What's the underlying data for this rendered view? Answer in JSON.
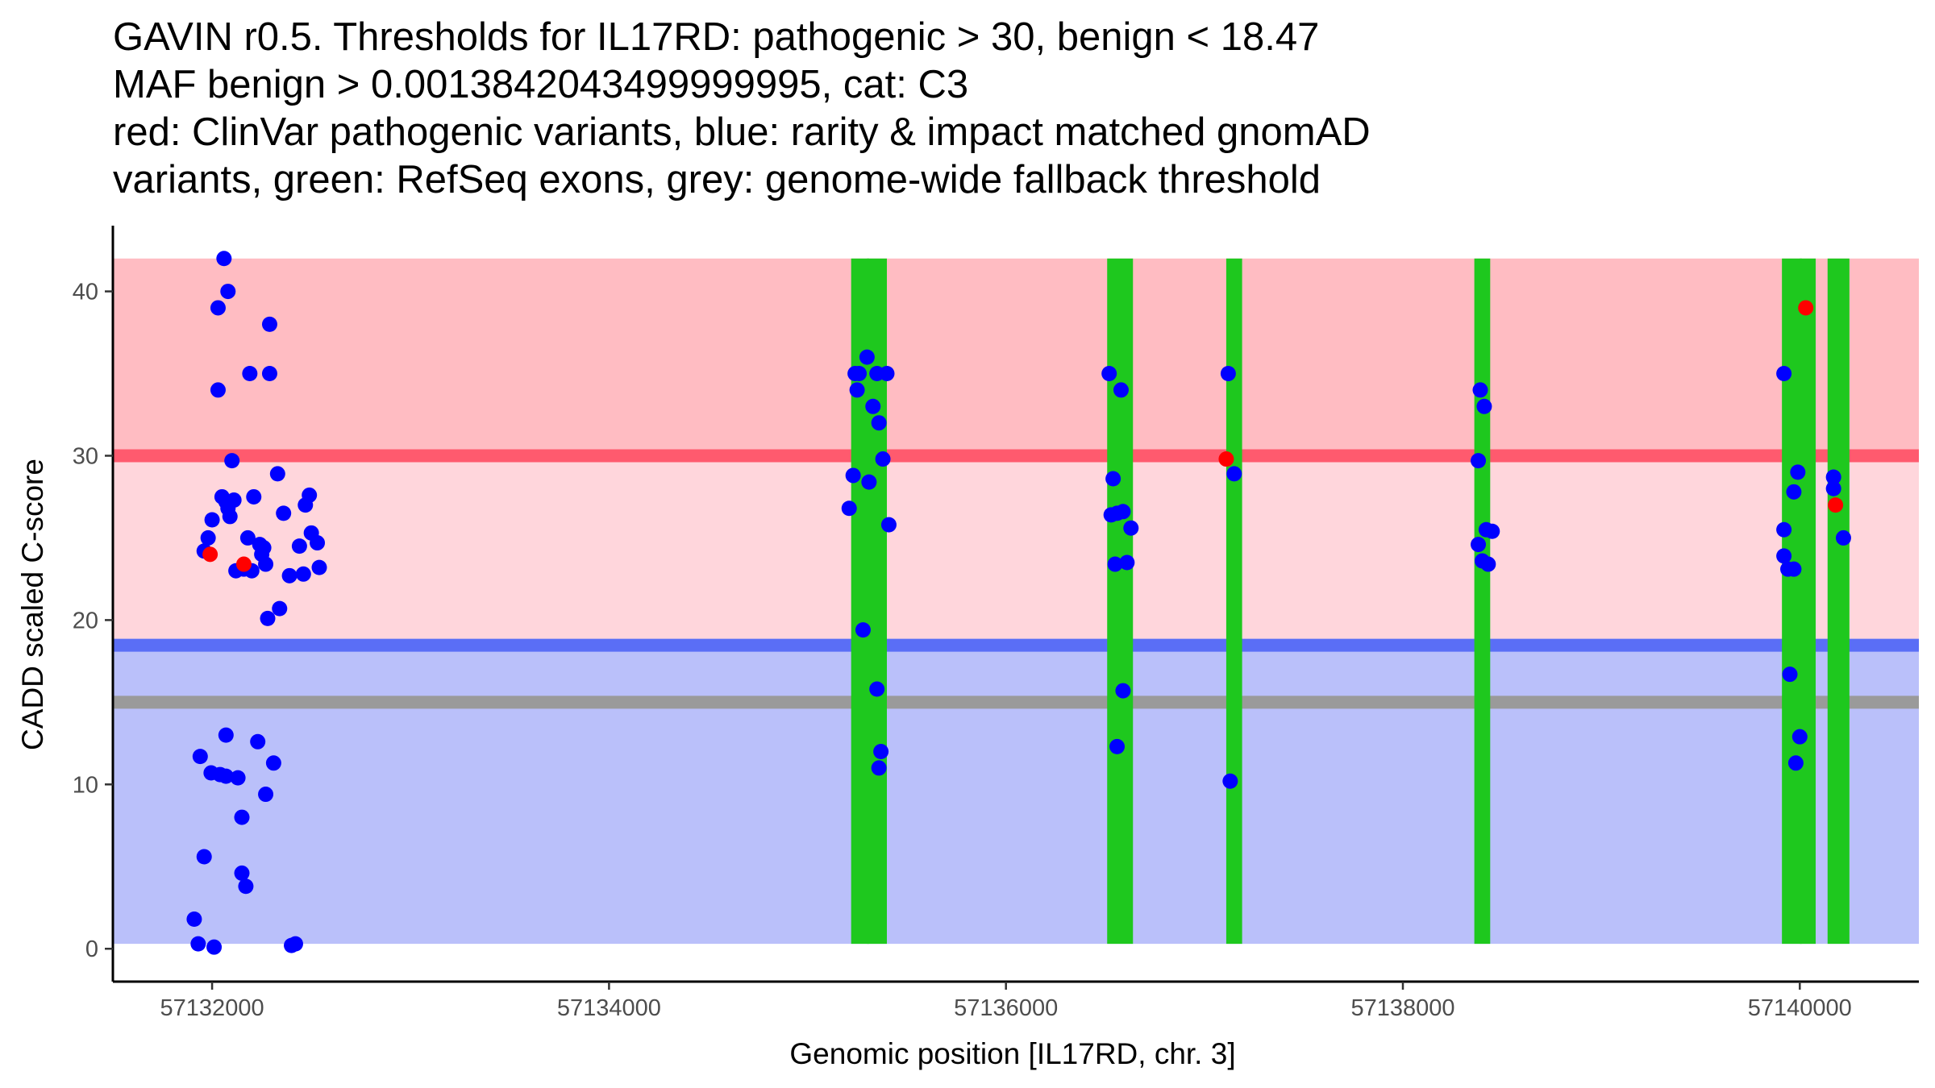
{
  "chart_data": {
    "type": "scatter",
    "title_lines": [
      "GAVIN r0.5. Thresholds for IL17RD: pathogenic > 30, benign < 18.47",
      "MAF benign > 0.0013842043499999995, cat: C3",
      "red: ClinVar pathogenic variants, blue: rarity & impact matched gnomAD",
      "variants, green: RefSeq exons, grey: genome-wide fallback threshold"
    ],
    "xlabel": "Genomic position [IL17RD, chr. 3]",
    "ylabel": "CADD scaled C-score",
    "xlim": [
      57131500,
      57140600
    ],
    "ylim": [
      -2,
      44
    ],
    "x_ticks": [
      {
        "value": 57132000,
        "label": "57132000"
      },
      {
        "value": 57134000,
        "label": "57134000"
      },
      {
        "value": 57136000,
        "label": "57136000"
      },
      {
        "value": 57138000,
        "label": "57138000"
      },
      {
        "value": 57140000,
        "label": "57140000"
      }
    ],
    "y_ticks": [
      {
        "value": 0,
        "label": "0"
      },
      {
        "value": 10,
        "label": "10"
      },
      {
        "value": 20,
        "label": "20"
      },
      {
        "value": 30,
        "label": "30"
      },
      {
        "value": 40,
        "label": "40"
      }
    ],
    "colors": {
      "pathogenic_region": "#ffbcc2",
      "vus_region": "#ffd6dc",
      "benign_region": "#bac0fa",
      "pathogenic_line": "#ff5a6e",
      "benign_line": "#5a6ef6",
      "fallback_line": "#9a9a9a",
      "exon": "#1ec81e",
      "pathogenic_point": "#ff0000",
      "benign_point": "#0000ff"
    },
    "regions": [
      {
        "name": "pathogenic",
        "ymin": 30,
        "ymax": 42
      },
      {
        "name": "vus",
        "ymin": 18.47,
        "ymax": 30
      },
      {
        "name": "benign",
        "ymin": 0.3,
        "ymax": 18.47
      }
    ],
    "thresholds": {
      "pathogenic": 30,
      "benign": 18.47,
      "fallback": 15
    },
    "exons": [
      {
        "start": 57135220,
        "end": 57135310
      },
      {
        "start": 57135300,
        "end": 57135400
      },
      {
        "start": 57136510,
        "end": 57136640
      },
      {
        "start": 57137110,
        "end": 57137190
      },
      {
        "start": 57138360,
        "end": 57138440
      },
      {
        "start": 57139910,
        "end": 57140010
      },
      {
        "start": 57140000,
        "end": 57140080
      },
      {
        "start": 57140140,
        "end": 57140250
      }
    ],
    "series": [
      {
        "name": "ClinVar pathogenic variants",
        "color": "#ff0000",
        "points": [
          [
            57131990,
            24.0
          ],
          [
            57132160,
            23.4
          ],
          [
            57137110,
            29.8
          ],
          [
            57140030,
            39.0
          ],
          [
            57140180,
            27.0
          ]
        ]
      },
      {
        "name": "rarity & impact matched gnomAD variants",
        "color": "#0000ff",
        "points": [
          [
            57131930,
            0.3
          ],
          [
            57131910,
            1.8
          ],
          [
            57131960,
            5.6
          ],
          [
            57131940,
            11.7
          ],
          [
            57132010,
            0.1
          ],
          [
            57131995,
            10.7
          ],
          [
            57132040,
            10.6
          ],
          [
            57132070,
            13.0
          ],
          [
            57132070,
            10.5
          ],
          [
            57132130,
            10.4
          ],
          [
            57132150,
            8.0
          ],
          [
            57132150,
            4.6
          ],
          [
            57132170,
            3.8
          ],
          [
            57132230,
            12.6
          ],
          [
            57132270,
            9.4
          ],
          [
            57132310,
            11.3
          ],
          [
            57132400,
            0.2
          ],
          [
            57132420,
            0.3
          ],
          [
            57132280,
            20.1
          ],
          [
            57132340,
            20.7
          ],
          [
            57131960,
            24.2
          ],
          [
            57131980,
            25.0
          ],
          [
            57132000,
            26.1
          ],
          [
            57132030,
            39.0
          ],
          [
            57132030,
            34.0
          ],
          [
            57132060,
            42.0
          ],
          [
            57132080,
            40.0
          ],
          [
            57132050,
            27.5
          ],
          [
            57132080,
            26.8
          ],
          [
            57132090,
            26.3
          ],
          [
            57132070,
            27.2
          ],
          [
            57132110,
            27.3
          ],
          [
            57132100,
            29.7
          ],
          [
            57132120,
            23.0
          ],
          [
            57132160,
            23.1
          ],
          [
            57132180,
            25.0
          ],
          [
            57132200,
            23.0
          ],
          [
            57132190,
            35.0
          ],
          [
            57132210,
            27.5
          ],
          [
            57132240,
            24.6
          ],
          [
            57132250,
            24.0
          ],
          [
            57132260,
            24.4
          ],
          [
            57132270,
            23.4
          ],
          [
            57132290,
            38.0
          ],
          [
            57132290,
            35.0
          ],
          [
            57132330,
            28.9
          ],
          [
            57132360,
            26.5
          ],
          [
            57132390,
            22.7
          ],
          [
            57132440,
            24.5
          ],
          [
            57132460,
            22.8
          ],
          [
            57132470,
            27.0
          ],
          [
            57132490,
            27.6
          ],
          [
            57132500,
            25.3
          ],
          [
            57132530,
            24.7
          ],
          [
            57132540,
            23.2
          ],
          [
            57135210,
            26.8
          ],
          [
            57135230,
            28.8
          ],
          [
            57135240,
            35.0
          ],
          [
            57135250,
            34.0
          ],
          [
            57135260,
            35.0
          ],
          [
            57135280,
            19.4
          ],
          [
            57135300,
            36.0
          ],
          [
            57135310,
            28.4
          ],
          [
            57135330,
            33.0
          ],
          [
            57135350,
            35.0
          ],
          [
            57135350,
            15.8
          ],
          [
            57135360,
            32.0
          ],
          [
            57135370,
            12.0
          ],
          [
            57135360,
            11.0
          ],
          [
            57135380,
            29.8
          ],
          [
            57135410,
            25.8
          ],
          [
            57135400,
            35.0
          ],
          [
            57136520,
            35.0
          ],
          [
            57136540,
            28.6
          ],
          [
            57136530,
            26.4
          ],
          [
            57136550,
            23.4
          ],
          [
            57136560,
            26.5
          ],
          [
            57136560,
            12.3
          ],
          [
            57136580,
            34.0
          ],
          [
            57136590,
            26.6
          ],
          [
            57136590,
            15.7
          ],
          [
            57136610,
            23.5
          ],
          [
            57136630,
            25.6
          ],
          [
            57137120,
            35.0
          ],
          [
            57137150,
            28.9
          ],
          [
            57137130,
            10.2
          ],
          [
            57138380,
            24.6
          ],
          [
            57138380,
            29.7
          ],
          [
            57138390,
            34.0
          ],
          [
            57138400,
            23.6
          ],
          [
            57138410,
            33.0
          ],
          [
            57138420,
            25.5
          ],
          [
            57138430,
            23.4
          ],
          [
            57138450,
            25.4
          ],
          [
            57139920,
            35.0
          ],
          [
            57139920,
            25.5
          ],
          [
            57139920,
            23.9
          ],
          [
            57139940,
            23.1
          ],
          [
            57139950,
            16.7
          ],
          [
            57139970,
            27.8
          ],
          [
            57139970,
            23.1
          ],
          [
            57139990,
            29.0
          ],
          [
            57139980,
            11.3
          ],
          [
            57140000,
            12.9
          ],
          [
            57140170,
            28.7
          ],
          [
            57140170,
            28.0
          ],
          [
            57140220,
            25.0
          ]
        ]
      }
    ]
  }
}
